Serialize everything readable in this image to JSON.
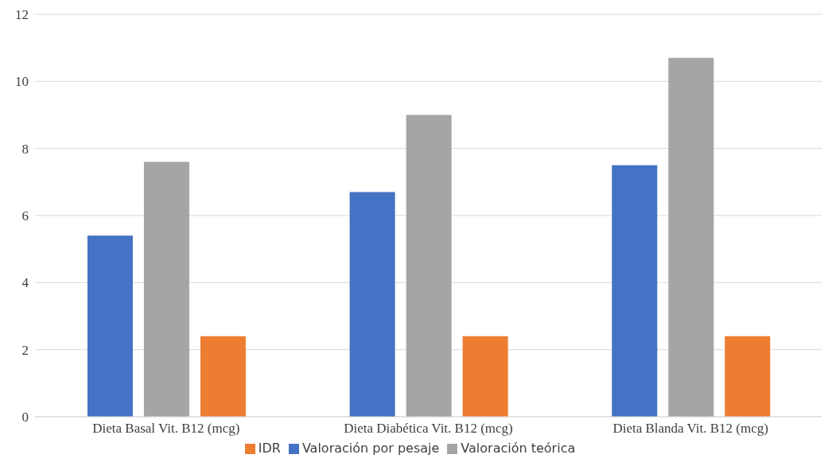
{
  "chart_data": {
    "type": "bar",
    "categories": [
      "Dieta Basal Vit. B12 (mcg)",
      "Dieta Diabética Vit. B12 (mcg)",
      "Dieta Blanda Vit. B12 (mcg)"
    ],
    "series": [
      {
        "name": "Valoración por pesaje",
        "color": "#4472c4",
        "values": [
          5.4,
          6.7,
          7.5
        ]
      },
      {
        "name": "Valoración teórica",
        "color": "#a5a5a5",
        "values": [
          7.6,
          9.0,
          10.7
        ]
      },
      {
        "name": "IDR",
        "color": "#ed7d31",
        "values": [
          2.4,
          2.4,
          2.4
        ]
      }
    ],
    "ylim": [
      0,
      12
    ],
    "yticks": [
      0,
      2,
      4,
      6,
      8,
      10,
      12
    ],
    "grid": "y",
    "legend": "bottom"
  }
}
